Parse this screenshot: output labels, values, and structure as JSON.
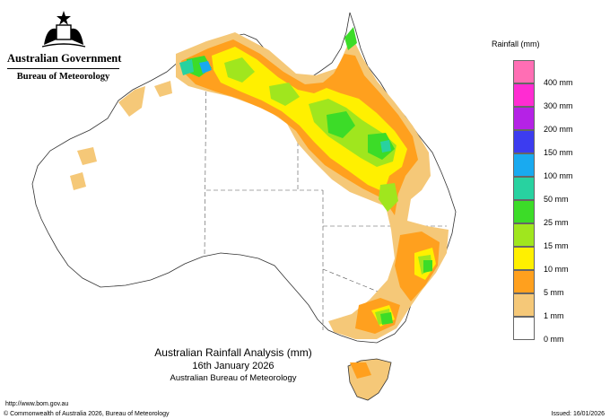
{
  "branding": {
    "government": "Australian Government",
    "agency": "Bureau of Meteorology"
  },
  "map": {
    "title": "Australian Rainfall Analysis (mm)",
    "date": "16th January 2026",
    "credit": "Australian Bureau of Meteorology"
  },
  "legend": {
    "title": "Rainfall (mm)",
    "items": [
      {
        "label": "",
        "color": "#ff6eb4"
      },
      {
        "label": "400 mm",
        "color": "#ff2cd2"
      },
      {
        "label": "300 mm",
        "color": "#b522e6"
      },
      {
        "label": "200 mm",
        "color": "#3c3cf0"
      },
      {
        "label": "150 mm",
        "color": "#19aaf0"
      },
      {
        "label": "100 mm",
        "color": "#28d2a0"
      },
      {
        "label": "50 mm",
        "color": "#3cdc28"
      },
      {
        "label": "25 mm",
        "color": "#a0e61e"
      },
      {
        "label": "15 mm",
        "color": "#fff000"
      },
      {
        "label": "10 mm",
        "color": "#ffa01e"
      },
      {
        "label": "5 mm",
        "color": "#f5c878"
      },
      {
        "label": "1 mm",
        "color": "#ffffff"
      },
      {
        "label": "0 mm",
        "color": ""
      }
    ]
  },
  "footer": {
    "url": "http://www.bom.gov.au",
    "copyright": "© Commonwealth of Australia 2026, Bureau of Meteorology",
    "issued": "Issued: 16/01/2026"
  }
}
